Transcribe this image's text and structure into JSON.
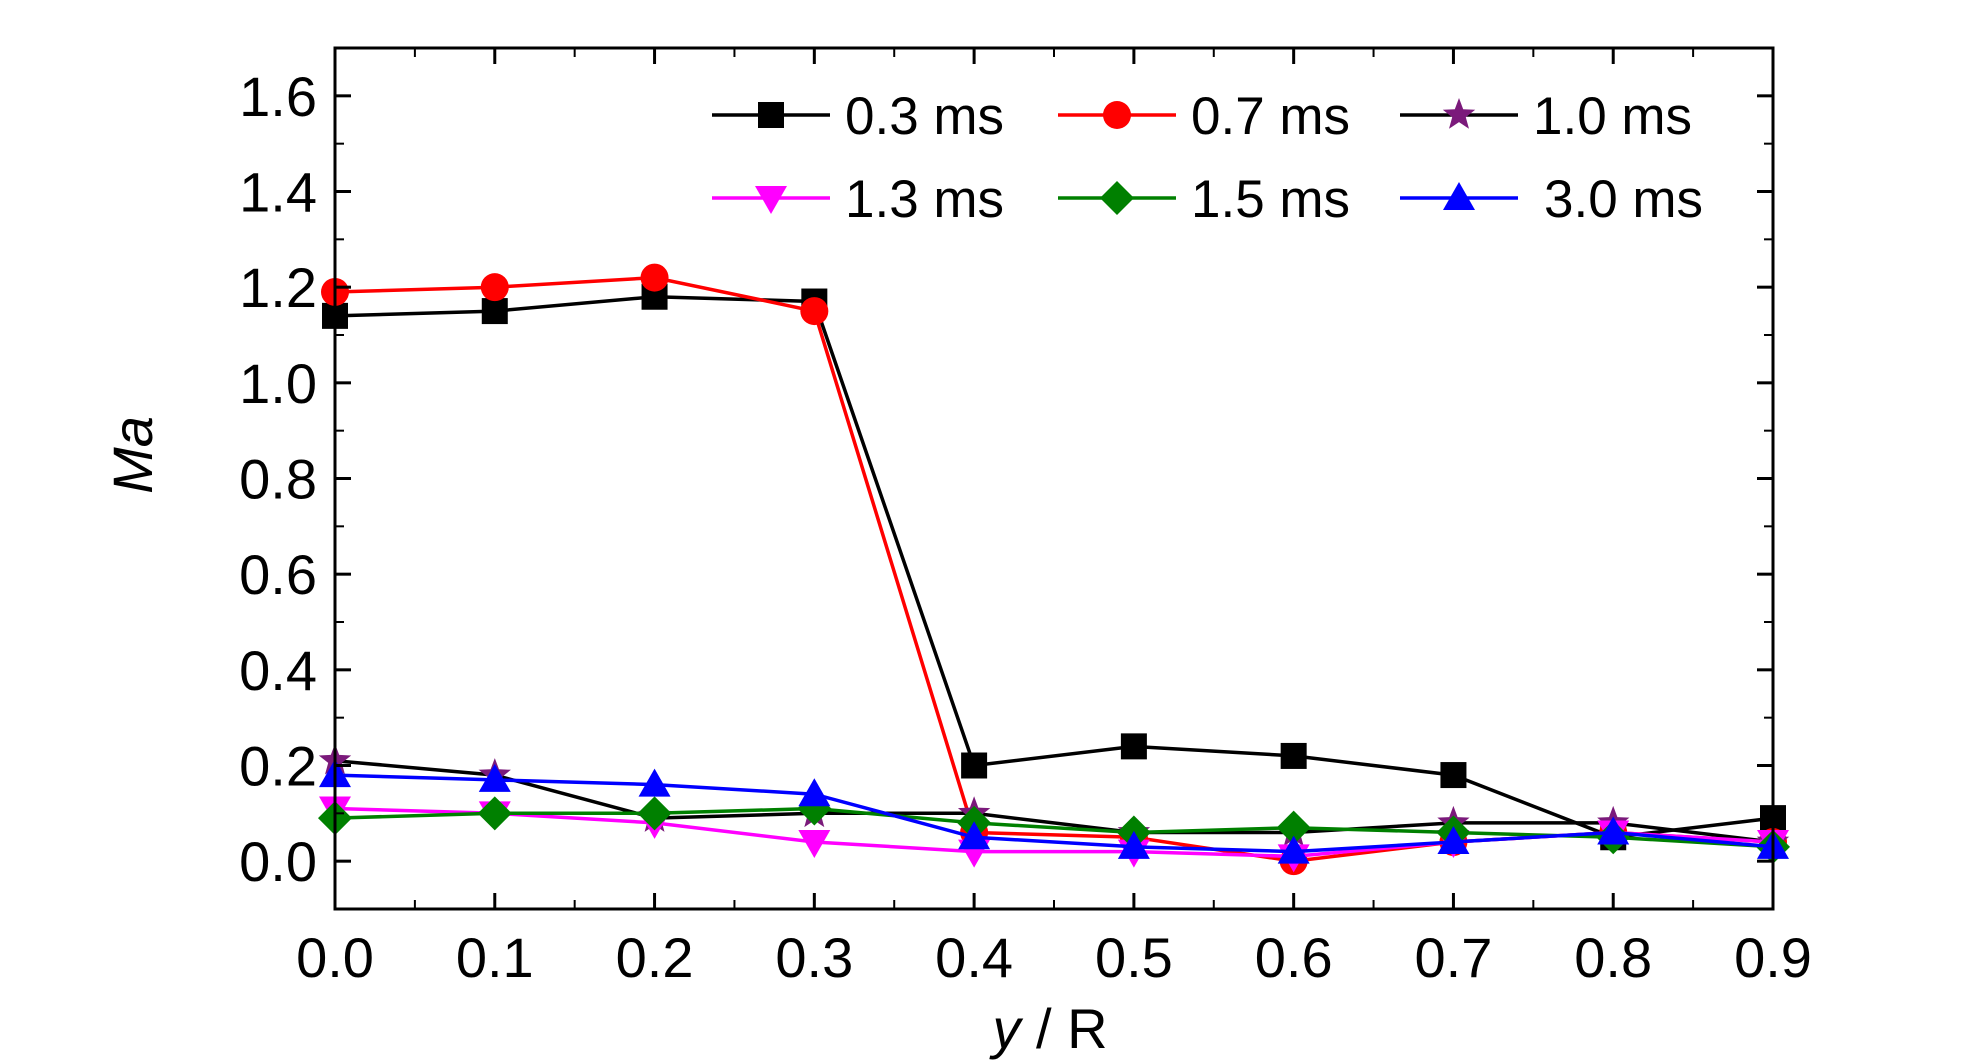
{
  "chart_data": {
    "type": "line",
    "title": "",
    "xlabel_var": "y",
    "xlabel_rest": " / R",
    "ylabel": "Ma",
    "xlim": [
      0.0,
      0.9
    ],
    "ylim": [
      -0.1,
      1.7
    ],
    "x_ticks": [
      "0.0",
      "0.1",
      "0.2",
      "0.3",
      "0.4",
      "0.5",
      "0.6",
      "0.7",
      "0.8",
      "0.9"
    ],
    "y_ticks": [
      "0.0",
      "0.2",
      "0.4",
      "0.6",
      "0.8",
      "1.0",
      "1.2",
      "1.4",
      "1.6"
    ],
    "grid": false,
    "legend_position": "top-right",
    "x": [
      0.0,
      0.1,
      0.2,
      0.3,
      0.4,
      0.5,
      0.6,
      0.7,
      0.8,
      0.9
    ],
    "series": [
      {
        "name": "0.3 ms",
        "line_color": "#000000",
        "marker_color": "#000000",
        "marker": "square",
        "values": [
          1.14,
          1.15,
          1.18,
          1.17,
          0.2,
          0.24,
          0.22,
          0.18,
          0.05,
          0.09
        ]
      },
      {
        "name": "0.7 ms",
        "line_color": "#ff0000",
        "marker_color": "#ff0000",
        "marker": "circle",
        "values": [
          1.19,
          1.2,
          1.22,
          1.15,
          0.06,
          0.05,
          0.0,
          0.04,
          0.06,
          0.04
        ]
      },
      {
        "name": "1.0 ms",
        "line_color": "#000000",
        "marker_color": "#7b1a7b",
        "marker": "star",
        "values": [
          0.21,
          0.18,
          0.09,
          0.1,
          0.1,
          0.06,
          0.06,
          0.08,
          0.08,
          0.04
        ]
      },
      {
        "name": "1.3 ms",
        "line_color": "#ff00ff",
        "marker_color": "#ff00ff",
        "marker": "triangle-down",
        "values": [
          0.11,
          0.1,
          0.08,
          0.04,
          0.02,
          0.02,
          0.01,
          0.04,
          0.06,
          0.04
        ]
      },
      {
        "name": "1.5 ms",
        "line_color": "#008000",
        "marker_color": "#008000",
        "marker": "diamond",
        "values": [
          0.09,
          0.1,
          0.1,
          0.11,
          0.08,
          0.06,
          0.07,
          0.06,
          0.05,
          0.03
        ]
      },
      {
        "name": "3.0 ms",
        "line_color": "#0000ff",
        "marker_color": "#0000ff",
        "marker": "triangle-up",
        "values": [
          0.18,
          0.17,
          0.16,
          0.14,
          0.05,
          0.03,
          0.02,
          0.04,
          0.06,
          0.03
        ]
      }
    ]
  }
}
